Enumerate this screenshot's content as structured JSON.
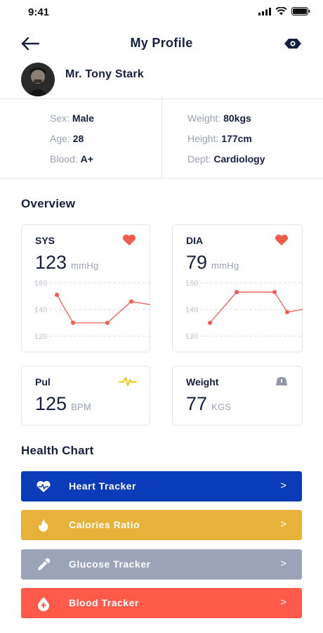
{
  "status_bar": {
    "time": "9:41",
    "icons": [
      "signal-icon",
      "wifi-icon",
      "battery-icon"
    ]
  },
  "header": {
    "title": "My Profile",
    "back_icon": "arrow-left-icon",
    "view_icon": "eye-icon"
  },
  "profile": {
    "name": "Mr. Tony Stark"
  },
  "info": {
    "sex_label": "Sex:",
    "sex_value": "Male",
    "age_label": "Age:",
    "age_value": "28",
    "blood_label": "Blood:",
    "blood_value": "A+",
    "weight_label": "Weight:",
    "weight_value": "80kgs",
    "height_label": "Height:",
    "height_value": "177cm",
    "dept_label": "Dept:",
    "dept_value": "Cardiology"
  },
  "overview": {
    "title": "Overview",
    "sys": {
      "label": "SYS",
      "value": "123",
      "unit": "mmHg",
      "icon": "heart-icon"
    },
    "dia": {
      "label": "DIA",
      "value": "79",
      "unit": "mmHg",
      "icon": "heart-icon"
    },
    "pul": {
      "label": "Pul",
      "value": "125",
      "unit": "BPM",
      "icon": "pulse-icon"
    },
    "weight": {
      "label": "Weight",
      "value": "77",
      "unit": "KGS",
      "icon": "scale-icon"
    }
  },
  "chart_data": [
    {
      "type": "line",
      "ylim": [
        120,
        160
      ],
      "yticks": [
        "160",
        "140",
        "120"
      ],
      "values": [
        151,
        130,
        130,
        146,
        143
      ]
    },
    {
      "type": "line",
      "ylim": [
        120,
        160
      ],
      "yticks": [
        "160",
        "140",
        "120"
      ],
      "values": [
        130,
        153,
        153,
        138,
        141
      ]
    }
  ],
  "health_chart": {
    "title": "Health Chart",
    "items": [
      {
        "label": "Heart Tracker",
        "icon": "heart-pulse-icon",
        "color": "#0a3bb8"
      },
      {
        "label": "Calories Ratio",
        "icon": "flame-icon",
        "color": "#e8b23a"
      },
      {
        "label": "Glucose Tracker",
        "icon": "dropper-icon",
        "color": "#9aa3b8"
      },
      {
        "label": "Blood Tracker",
        "icon": "blood-drop-icon",
        "color": "#ff5a4a"
      }
    ],
    "chevron": ">"
  },
  "colors": {
    "text": "#152040",
    "muted": "#9aa1b3",
    "accent_red": "#f25c4f",
    "pulse_yellow": "#f2c200"
  }
}
